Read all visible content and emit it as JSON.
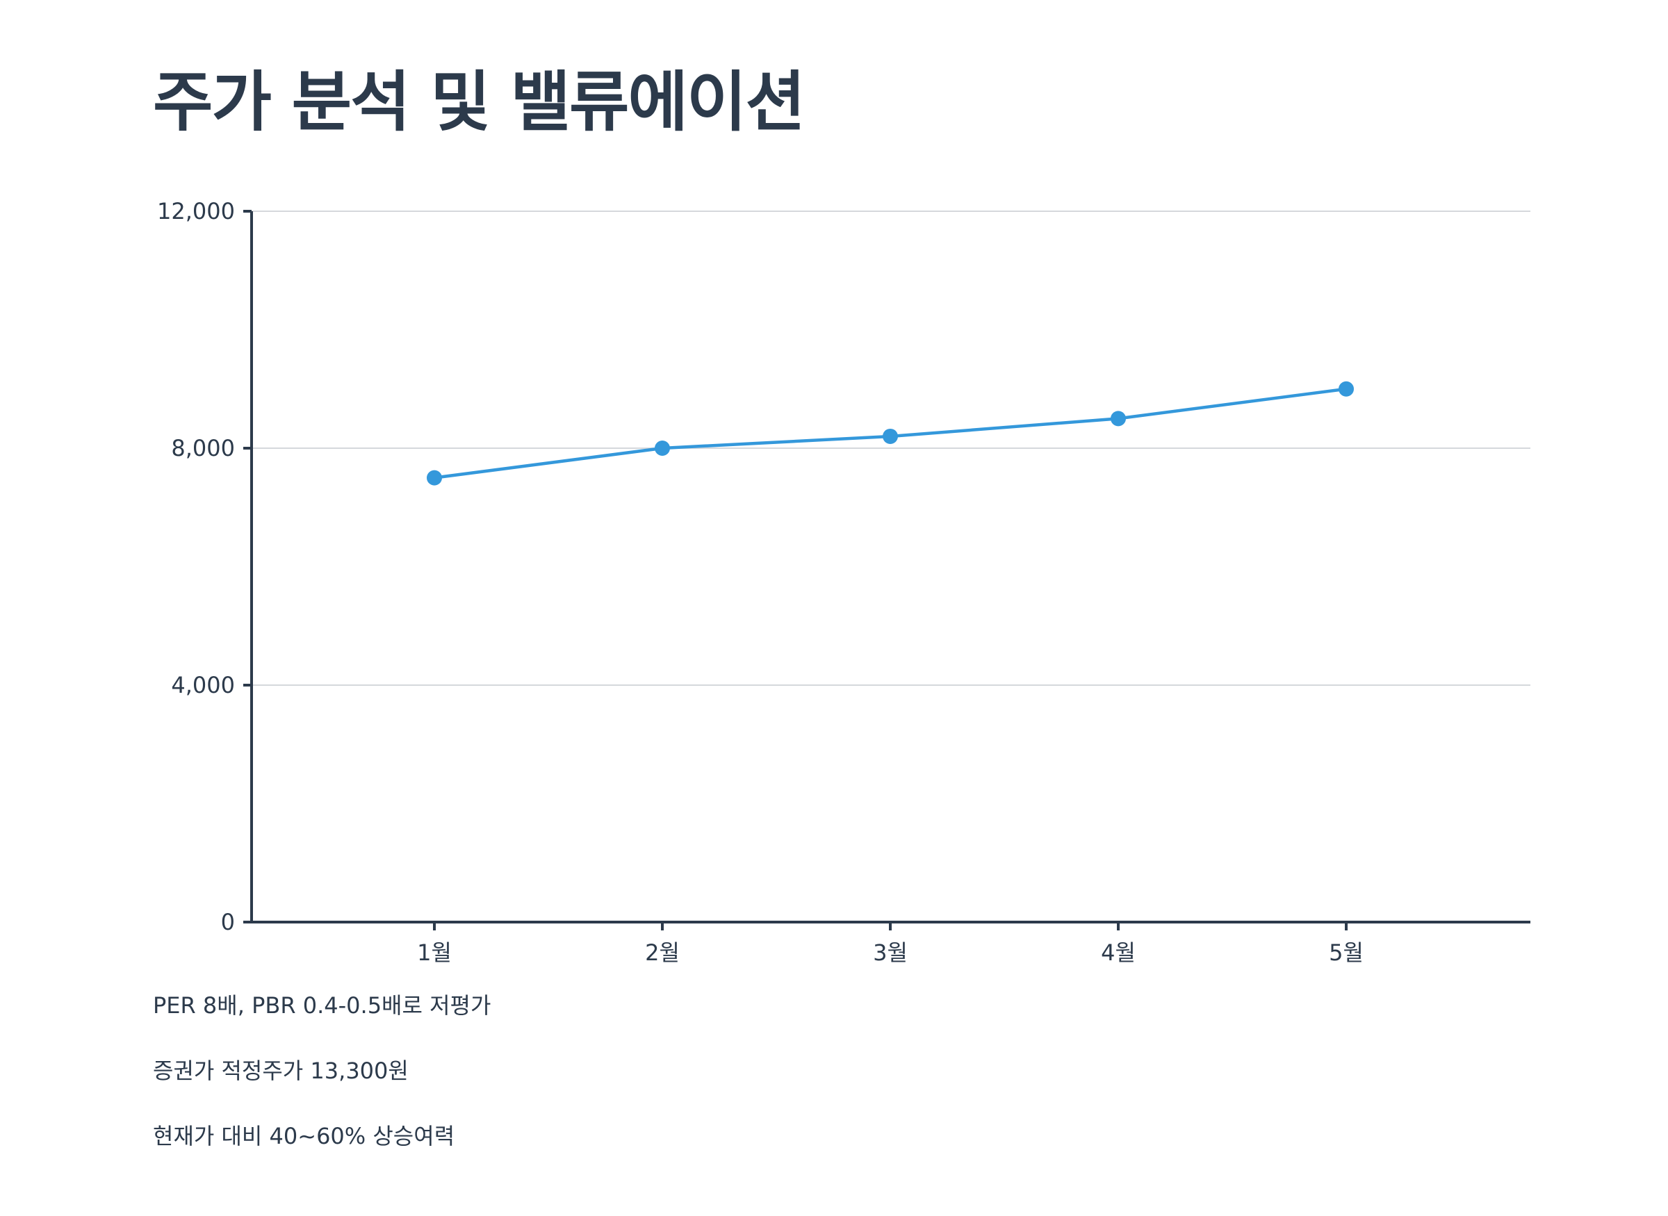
{
  "page": {
    "title": "주가 분석 및 밸류에이션"
  },
  "colors": {
    "text": "#2c3a4b",
    "line": "#3498db",
    "grid": "#d5d8dc",
    "axis": "#2c3a4b"
  },
  "chart_data": {
    "type": "line",
    "title": "",
    "xlabel": "",
    "ylabel": "",
    "categories": [
      "1월",
      "2월",
      "3월",
      "4월",
      "5월"
    ],
    "values": [
      7500,
      8000,
      8200,
      8500,
      9000
    ],
    "ylim": [
      0,
      12000
    ],
    "yticks": [
      0,
      4000,
      8000,
      12000
    ],
    "ytick_labels": [
      "0",
      "4,000",
      "8,000",
      "12,000"
    ],
    "grid": true,
    "legend": "none"
  },
  "notes": [
    "PER 8배, PBR 0.4-0.5배로 저평가",
    "증권가 적정주가 13,300원",
    "현재가 대비 40~60% 상승여력"
  ]
}
